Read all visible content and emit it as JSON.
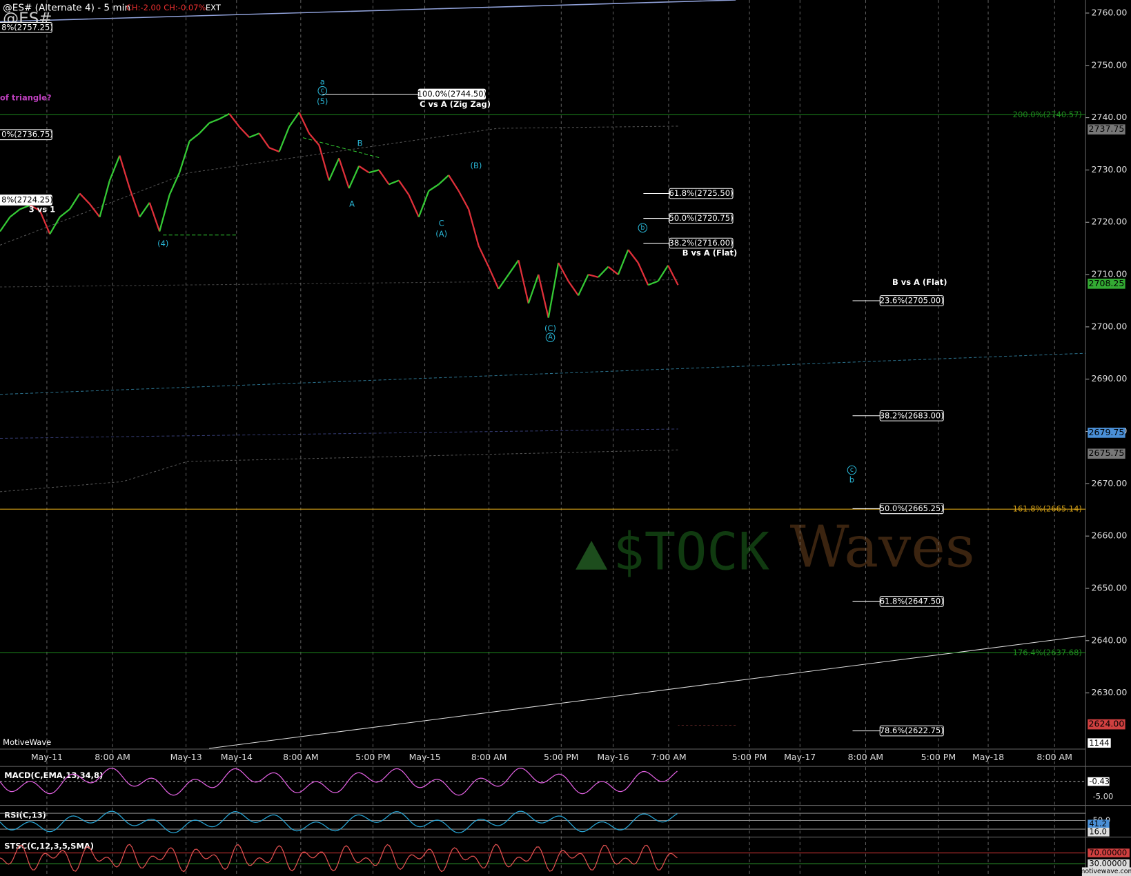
{
  "header": {
    "symbol_title": "@ES# (Alternate 4) - 5 min",
    "change": "CH:-2.00",
    "change_pct": "CH:-0.07%",
    "session": "EXT",
    "big_symbol": "@ES#"
  },
  "chart_data": {
    "type": "line",
    "up_color": "#35c935",
    "down_color": "#e0303a",
    "values": [
      2718.25,
      2721,
      2722.5,
      2723.25,
      2722.25,
      2717.75,
      2721,
      2722.5,
      2725.5,
      2723.5,
      2721,
      2728,
      2732.75,
      2726.5,
      2721,
      2723.75,
      2718.25,
      2725.25,
      2729.5,
      2735.5,
      2737,
      2739,
      2739.75,
      2740.75,
      2738.25,
      2736.25,
      2737,
      2734.25,
      2733.5,
      2738.25,
      2741,
      2737,
      2734.75,
      2728,
      2732.25,
      2726.5,
      2730.75,
      2729.5,
      2730,
      2727.25,
      2728,
      2725.25,
      2721,
      2726,
      2727.25,
      2729,
      2726,
      2722.5,
      2715.5,
      2711.5,
      2707.25,
      2710,
      2712.75,
      2704.5,
      2710,
      2701.75,
      2712.25,
      2708.75,
      2706,
      2710,
      2709.5,
      2711.5,
      2710,
      2714.75,
      2712.25,
      2708,
      2708.75,
      2711.75,
      2708
    ],
    "ylim": [
      2619.4,
      2762.5
    ],
    "yticks": [
      {
        "value": 2630,
        "label": "2630.00"
      },
      {
        "value": 2640,
        "label": "2640.00"
      },
      {
        "value": 2650,
        "label": "2650.00"
      },
      {
        "value": 2660,
        "label": "2660.00"
      },
      {
        "value": 2670,
        "label": "2670.00"
      },
      {
        "value": 2680,
        "label": "2680.00"
      },
      {
        "value": 2690,
        "label": "2690.00"
      },
      {
        "value": 2700,
        "label": "2700.00"
      },
      {
        "value": 2710,
        "label": "2710.00"
      },
      {
        "value": 2720,
        "label": "2720.00"
      },
      {
        "value": 2730,
        "label": "2730.00"
      },
      {
        "value": 2740,
        "label": "2740.00"
      },
      {
        "value": 2750,
        "label": "2750.00"
      },
      {
        "value": 2760,
        "label": "2760.00"
      }
    ],
    "x_labels": [
      "May-11",
      "8:00 AM",
      "May-13",
      "May-14",
      "8:00 AM",
      "5:00 PM",
      "May-15",
      "8:00 AM",
      "5:00 PM",
      "May-16",
      "7:00 AM",
      "5:00 PM",
      "May-17",
      "8:00 AM",
      "5:00 PM",
      "May-18",
      "8:00 AM"
    ],
    "grid": true,
    "levels": [
      {
        "label": "200.0%(2740.57)",
        "value": 2740.57,
        "color": "#1e8c1e"
      },
      {
        "label": "161.8%(2665.14)",
        "value": 2665.14,
        "color": "#d4a017"
      },
      {
        "label": "176.4%(2637.68)",
        "value": 2637.68,
        "color": "#1e8c1e"
      }
    ],
    "fib_boxes": [
      {
        "label": "100.0%(2744.50)",
        "value": 2744.5
      },
      {
        "label": "61.8%(2725.50)",
        "value": 2725.5
      },
      {
        "label": "50.0%(2720.75)",
        "value": 2720.75
      },
      {
        "label": "38.2%(2716.00)",
        "value": 2716
      },
      {
        "label": "23.6%(2705.00)",
        "value": 2705
      },
      {
        "label": "38.2%(2683.00)",
        "value": 2683
      },
      {
        "label": "50.0%(2665.25)",
        "value": 2665.25
      },
      {
        "label": "61.8%(2647.50)",
        "value": 2647.5
      },
      {
        "label": "78.6%(2622.75)",
        "value": 2622.75
      }
    ],
    "left_boxes": [
      {
        "label": "8%(2757.25)",
        "value": 2757.25
      },
      {
        "label": "0%(2736.75)",
        "value": 2736.75
      },
      {
        "label": "8%(2724.25)",
        "value": 2724.25
      }
    ],
    "axis_boxes": [
      {
        "value": 2737.75,
        "label": "2737.75",
        "color": "#777"
      },
      {
        "value": 2708.25,
        "label": "2708.25",
        "color": "#3a3"
      },
      {
        "value": 2679.75,
        "label": "2679.75",
        "color": "#4a8fd6"
      },
      {
        "value": 2675.75,
        "label": "2675.75",
        "color": "#777"
      },
      {
        "value": 2624,
        "label": "2624.00",
        "color": "#d04040"
      }
    ],
    "volume_box": 1144,
    "wave_labels": [
      {
        "text": "a"
      },
      {
        "text": "c",
        "circled": true
      },
      {
        "text": "(5)"
      },
      {
        "text": "B"
      },
      {
        "text": "A"
      },
      {
        "text": "C"
      },
      {
        "text": "(A)"
      },
      {
        "text": "(B)"
      },
      {
        "text": "b",
        "circled": true
      },
      {
        "text": "(C)"
      },
      {
        "text": "A",
        "circled": true
      },
      {
        "text": "c",
        "circled": true
      },
      {
        "text": "b"
      },
      {
        "text": "(4)"
      }
    ],
    "notes": [
      "of triangle?",
      "3 vs 1",
      "C vs A (Zig Zag)",
      "B vs A (Flat)",
      "B vs A (Flat)"
    ],
    "watermark": [
      "$TOCK",
      "Waves"
    ],
    "platform": "MotiveWave",
    "footer": "motivewave.com"
  },
  "indicators": [
    {
      "name": "MACD(C,EMA,13,34,8)",
      "labels": [
        "-0.43",
        "-5.00"
      ]
    },
    {
      "name": "RSI(C,13)",
      "labels": [
        "50.0",
        "41.2",
        "16.0"
      ]
    },
    {
      "name": "STSC(C,12,3,5,SMA)",
      "labels": [
        "70.00000",
        "30.00000"
      ]
    }
  ]
}
